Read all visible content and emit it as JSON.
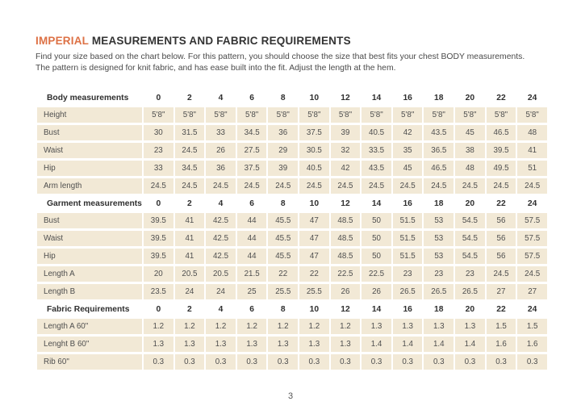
{
  "header": {
    "title_accent": "IMPERIAL",
    "title_rest": "MEASUREMENTS AND FABRIC REQUIREMENTS",
    "intro_line1": "Find your size based on the chart below. For this pattern, you should choose the size that best fits your chest BODY measurements.",
    "intro_line2": "The pattern is designed for knit fabric, and has ease built into the fit. Adjust the length at the hem."
  },
  "colors": {
    "accent_orange": "#DD7145",
    "cell_beige": "#F2E9D6",
    "title_dark": "#333333",
    "cell_text": "#4F4F4F"
  },
  "table": {
    "sizes": [
      "0",
      "2",
      "4",
      "6",
      "8",
      "10",
      "12",
      "14",
      "16",
      "18",
      "20",
      "22",
      "24"
    ],
    "sections": [
      {
        "header": "Body measurements",
        "rows": [
          {
            "label": "Height",
            "values": [
              "5'8\"",
              "5'8\"",
              "5'8\"",
              "5'8\"",
              "5'8\"",
              "5'8\"",
              "5'8\"",
              "5'8\"",
              "5'8\"",
              "5'8\"",
              "5'8\"",
              "5'8\"",
              "5'8\""
            ]
          },
          {
            "label": "Bust",
            "values": [
              "30",
              "31.5",
              "33",
              "34.5",
              "36",
              "37.5",
              "39",
              "40.5",
              "42",
              "43.5",
              "45",
              "46.5",
              "48"
            ]
          },
          {
            "label": "Waist",
            "values": [
              "23",
              "24.5",
              "26",
              "27.5",
              "29",
              "30.5",
              "32",
              "33.5",
              "35",
              "36.5",
              "38",
              "39.5",
              "41"
            ]
          },
          {
            "label": "Hip",
            "values": [
              "33",
              "34.5",
              "36",
              "37.5",
              "39",
              "40.5",
              "42",
              "43.5",
              "45",
              "46.5",
              "48",
              "49.5",
              "51"
            ]
          },
          {
            "label": "Arm length",
            "values": [
              "24.5",
              "24.5",
              "24.5",
              "24.5",
              "24.5",
              "24.5",
              "24.5",
              "24.5",
              "24.5",
              "24.5",
              "24.5",
              "24.5",
              "24.5"
            ]
          }
        ]
      },
      {
        "header": "Garment measurements",
        "rows": [
          {
            "label": "Bust",
            "values": [
              "39.5",
              "41",
              "42.5",
              "44",
              "45.5",
              "47",
              "48.5",
              "50",
              "51.5",
              "53",
              "54.5",
              "56",
              "57.5"
            ]
          },
          {
            "label": "Waist",
            "values": [
              "39.5",
              "41",
              "42.5",
              "44",
              "45.5",
              "47",
              "48.5",
              "50",
              "51.5",
              "53",
              "54.5",
              "56",
              "57.5"
            ]
          },
          {
            "label": "Hip",
            "values": [
              "39.5",
              "41",
              "42.5",
              "44",
              "45.5",
              "47",
              "48.5",
              "50",
              "51.5",
              "53",
              "54.5",
              "56",
              "57.5"
            ]
          },
          {
            "label": "Length A",
            "values": [
              "20",
              "20.5",
              "20.5",
              "21.5",
              "22",
              "22",
              "22.5",
              "22.5",
              "23",
              "23",
              "23",
              "24.5",
              "24.5"
            ]
          },
          {
            "label": "Length B",
            "values": [
              "23.5",
              "24",
              "24",
              "25",
              "25.5",
              "25.5",
              "26",
              "26",
              "26.5",
              "26.5",
              "26.5",
              "27",
              "27"
            ]
          }
        ]
      },
      {
        "header": "Fabric Requirements",
        "rows": [
          {
            "label": "Length A 60\"",
            "values": [
              "1.2",
              "1.2",
              "1.2",
              "1.2",
              "1.2",
              "1.2",
              "1.2",
              "1.3",
              "1.3",
              "1.3",
              "1.3",
              "1.5",
              "1.5"
            ]
          },
          {
            "label": "Lenght B 60\"",
            "values": [
              "1.3",
              "1.3",
              "1.3",
              "1.3",
              "1.3",
              "1.3",
              "1.3",
              "1.4",
              "1.4",
              "1.4",
              "1.4",
              "1.6",
              "1.6"
            ]
          },
          {
            "label": "Rib 60\"",
            "values": [
              "0.3",
              "0.3",
              "0.3",
              "0.3",
              "0.3",
              "0.3",
              "0.3",
              "0.3",
              "0.3",
              "0.3",
              "0.3",
              "0.3",
              "0.3"
            ]
          }
        ]
      }
    ]
  },
  "footer": {
    "page_number": "3"
  }
}
